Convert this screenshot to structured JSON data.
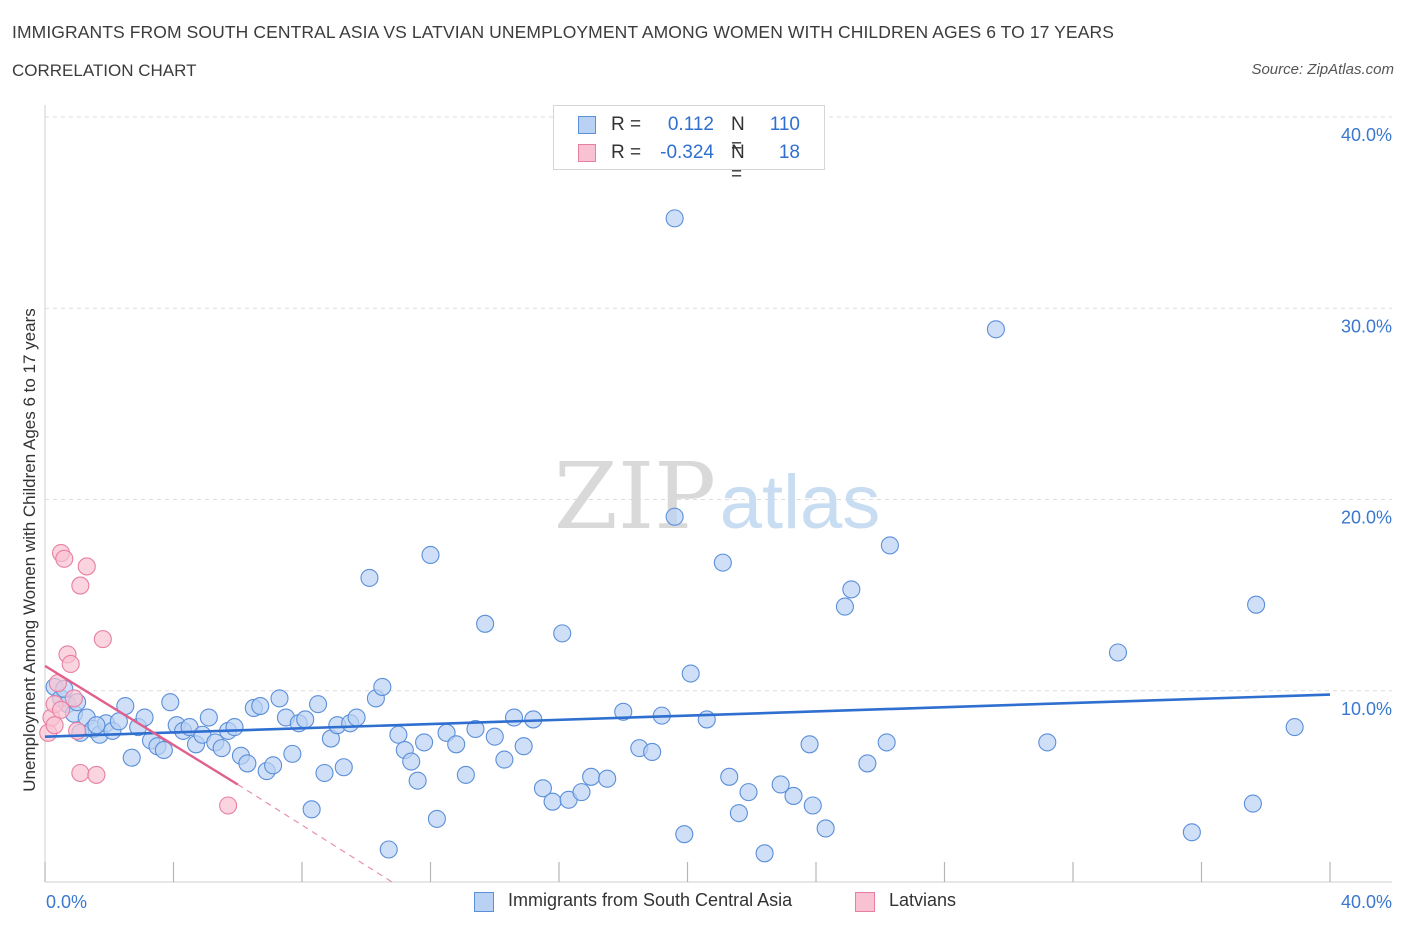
{
  "title": "IMMIGRANTS FROM SOUTH CENTRAL ASIA VS LATVIAN UNEMPLOYMENT AMONG WOMEN WITH CHILDREN AGES 6 TO 17 YEARS",
  "subtitle": "CORRELATION CHART",
  "source": "Source: ZipAtlas.com",
  "watermark": {
    "zip": "ZIP",
    "atlas": "atlas"
  },
  "colors": {
    "blue": "#5b8fd9",
    "blue_fill": "#b9d1f3",
    "blue_line": "#2f6fd0",
    "pink": "#e87fa2",
    "pink_fill": "#f8c2d2",
    "pink_line": "#e0608e",
    "axis_text": "#3a78d0",
    "grid": "#dcdcdc"
  },
  "legend_top": [
    {
      "r_label": "R =",
      "r_value": "0.112",
      "n_label": "N =",
      "n_value": "110",
      "color_key": "blue"
    },
    {
      "r_label": "R =",
      "r_value": "-0.324",
      "n_label": "N =",
      "n_value": "18",
      "color_key": "pink"
    }
  ],
  "legend_bottom": [
    {
      "label": "Immigrants from South Central Asia",
      "color_key": "blue"
    },
    {
      "label": "Latvians",
      "color_key": "pink"
    }
  ],
  "chart_data": {
    "type": "scatter",
    "ylabel": "Unemployment Among Women with Children Ages 6 to 17 years",
    "xlabel": "",
    "xlim": [
      0,
      40
    ],
    "ylim": [
      0,
      40
    ],
    "x_tick_labels": [
      {
        "x": 0,
        "label": "0.0%"
      },
      {
        "x": 40,
        "label": "40.0%"
      }
    ],
    "y_tick_labels": [
      {
        "y": 10,
        "label": "10.0%"
      },
      {
        "y": 20,
        "label": "20.0%"
      },
      {
        "y": 30,
        "label": "30.0%"
      },
      {
        "y": 40,
        "label": "40.0%"
      }
    ],
    "grid": "horizontal dashed",
    "series": [
      {
        "name": "Immigrants from South Central Asia",
        "color_key": "blue",
        "trend": {
          "x": [
            0,
            40
          ],
          "y": [
            7.6,
            9.8
          ]
        },
        "points": [
          [
            0.3,
            10.2
          ],
          [
            0.5,
            9.6
          ],
          [
            0.7,
            9.3
          ],
          [
            0.9,
            8.8
          ],
          [
            1.0,
            9.4
          ],
          [
            1.1,
            7.8
          ],
          [
            1.3,
            8.6
          ],
          [
            1.5,
            8.0
          ],
          [
            1.7,
            7.7
          ],
          [
            1.9,
            8.3
          ],
          [
            2.1,
            7.9
          ],
          [
            2.3,
            8.4
          ],
          [
            2.5,
            9.2
          ],
          [
            2.7,
            6.5
          ],
          [
            2.9,
            8.1
          ],
          [
            3.1,
            8.6
          ],
          [
            3.3,
            7.4
          ],
          [
            3.5,
            7.1
          ],
          [
            3.7,
            6.9
          ],
          [
            3.9,
            9.4
          ],
          [
            4.1,
            8.2
          ],
          [
            4.3,
            7.9
          ],
          [
            4.5,
            8.1
          ],
          [
            4.7,
            7.2
          ],
          [
            4.9,
            7.7
          ],
          [
            5.1,
            8.6
          ],
          [
            5.3,
            7.3
          ],
          [
            5.5,
            7.0
          ],
          [
            5.7,
            7.9
          ],
          [
            5.9,
            8.1
          ],
          [
            6.1,
            6.6
          ],
          [
            6.3,
            6.2
          ],
          [
            6.5,
            9.1
          ],
          [
            6.7,
            9.2
          ],
          [
            6.9,
            5.8
          ],
          [
            7.1,
            6.1
          ],
          [
            7.3,
            9.6
          ],
          [
            7.5,
            8.6
          ],
          [
            7.7,
            6.7
          ],
          [
            7.9,
            8.3
          ],
          [
            8.1,
            8.5
          ],
          [
            8.3,
            3.8
          ],
          [
            8.5,
            9.3
          ],
          [
            8.7,
            5.7
          ],
          [
            8.9,
            7.5
          ],
          [
            9.1,
            8.2
          ],
          [
            9.3,
            6.0
          ],
          [
            9.5,
            8.3
          ],
          [
            9.7,
            8.6
          ],
          [
            10.1,
            15.9
          ],
          [
            10.3,
            9.6
          ],
          [
            10.5,
            10.2
          ],
          [
            10.7,
            1.7
          ],
          [
            11.0,
            7.7
          ],
          [
            11.2,
            6.9
          ],
          [
            11.4,
            6.3
          ],
          [
            11.6,
            5.3
          ],
          [
            11.8,
            7.3
          ],
          [
            12.0,
            17.1
          ],
          [
            12.2,
            3.3
          ],
          [
            12.5,
            7.8
          ],
          [
            12.8,
            7.2
          ],
          [
            13.1,
            5.6
          ],
          [
            13.4,
            8.0
          ],
          [
            13.7,
            13.5
          ],
          [
            14.0,
            7.6
          ],
          [
            14.3,
            6.4
          ],
          [
            14.6,
            8.6
          ],
          [
            14.9,
            7.1
          ],
          [
            15.2,
            8.5
          ],
          [
            15.5,
            4.9
          ],
          [
            15.8,
            4.2
          ],
          [
            16.1,
            13.0
          ],
          [
            16.3,
            4.3
          ],
          [
            16.7,
            4.7
          ],
          [
            17.0,
            5.5
          ],
          [
            17.5,
            5.4
          ],
          [
            18.0,
            8.9
          ],
          [
            18.5,
            7.0
          ],
          [
            18.9,
            6.8
          ],
          [
            19.2,
            8.7
          ],
          [
            19.6,
            19.1
          ],
          [
            19.9,
            2.5
          ],
          [
            20.1,
            10.9
          ],
          [
            20.6,
            8.5
          ],
          [
            21.1,
            16.7
          ],
          [
            21.3,
            5.5
          ],
          [
            21.6,
            3.6
          ],
          [
            21.9,
            4.7
          ],
          [
            22.4,
            1.5
          ],
          [
            22.9,
            5.1
          ],
          [
            23.3,
            4.5
          ],
          [
            23.9,
            4.0
          ],
          [
            24.3,
            2.8
          ],
          [
            23.8,
            7.2
          ],
          [
            24.9,
            14.4
          ],
          [
            25.1,
            15.3
          ],
          [
            25.6,
            6.2
          ],
          [
            26.2,
            7.3
          ],
          [
            26.3,
            17.6
          ],
          [
            19.6,
            34.7
          ],
          [
            29.6,
            28.9
          ],
          [
            31.2,
            7.3
          ],
          [
            33.4,
            12.0
          ],
          [
            35.7,
            2.6
          ],
          [
            37.7,
            14.5
          ],
          [
            37.6,
            4.1
          ],
          [
            38.9,
            8.1
          ],
          [
            0.6,
            10.1
          ],
          [
            1.6,
            8.2
          ]
        ]
      },
      {
        "name": "Latvians",
        "color_key": "pink",
        "trend": {
          "x": [
            0,
            6.0
          ],
          "y": [
            11.3,
            5.1
          ]
        },
        "trend_extension": {
          "x": [
            6.0,
            10.8
          ],
          "y": [
            5.1,
            0.0
          ]
        },
        "points": [
          [
            0.1,
            7.8
          ],
          [
            0.2,
            8.6
          ],
          [
            0.3,
            9.3
          ],
          [
            0.4,
            10.4
          ],
          [
            0.5,
            9.0
          ],
          [
            0.5,
            17.2
          ],
          [
            0.6,
            16.9
          ],
          [
            0.7,
            11.9
          ],
          [
            0.8,
            11.4
          ],
          [
            0.9,
            9.6
          ],
          [
            1.0,
            7.9
          ],
          [
            1.1,
            15.5
          ],
          [
            1.1,
            5.7
          ],
          [
            1.3,
            16.5
          ],
          [
            1.6,
            5.6
          ],
          [
            1.8,
            12.7
          ],
          [
            5.7,
            4.0
          ],
          [
            0.3,
            8.2
          ]
        ]
      }
    ]
  }
}
